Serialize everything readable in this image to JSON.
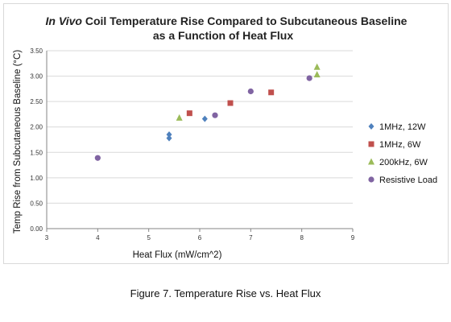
{
  "chart_data": {
    "type": "scatter",
    "title_italic": "In Vivo",
    "title_rest": " Coil Temperature Rise Compared to Subcutaneous Baseline",
    "title_line2": "as a Function of Heat Flux",
    "xlabel": "Heat Flux (mW/cm^2)",
    "ylabel": "Temp Rise from Subcutaneous Baseline (°C)",
    "xlim": [
      3,
      9
    ],
    "ylim": [
      0,
      3.5
    ],
    "xticks": [
      3,
      4,
      5,
      6,
      7,
      8,
      9
    ],
    "yticks": [
      "0.00",
      "0.50",
      "1.00",
      "1.50",
      "2.00",
      "2.50",
      "3.00",
      "3.50"
    ],
    "grid": "horizontal",
    "legend_position": "right",
    "series": [
      {
        "name": "1MHz, 12W",
        "marker": "diamond",
        "color": "#4f81bd",
        "points": [
          [
            5.4,
            1.78
          ],
          [
            5.4,
            1.85
          ],
          [
            6.1,
            2.16
          ]
        ]
      },
      {
        "name": "1MHz, 6W",
        "marker": "square",
        "color": "#c0504d",
        "points": [
          [
            5.8,
            2.27
          ],
          [
            6.6,
            2.47
          ],
          [
            7.4,
            2.68
          ]
        ]
      },
      {
        "name": "200kHz, 6W",
        "marker": "triangle",
        "color": "#9bbb59",
        "points": [
          [
            5.6,
            2.18
          ],
          [
            8.3,
            3.03
          ],
          [
            8.3,
            3.18
          ]
        ]
      },
      {
        "name": "Resistive Load",
        "marker": "circle",
        "color": "#8064a2",
        "points": [
          [
            4.0,
            1.39
          ],
          [
            6.3,
            2.23
          ],
          [
            7.0,
            2.7
          ],
          [
            8.15,
            2.96
          ]
        ]
      }
    ]
  },
  "caption": "Figure 7. Temperature Rise vs. Heat Flux"
}
